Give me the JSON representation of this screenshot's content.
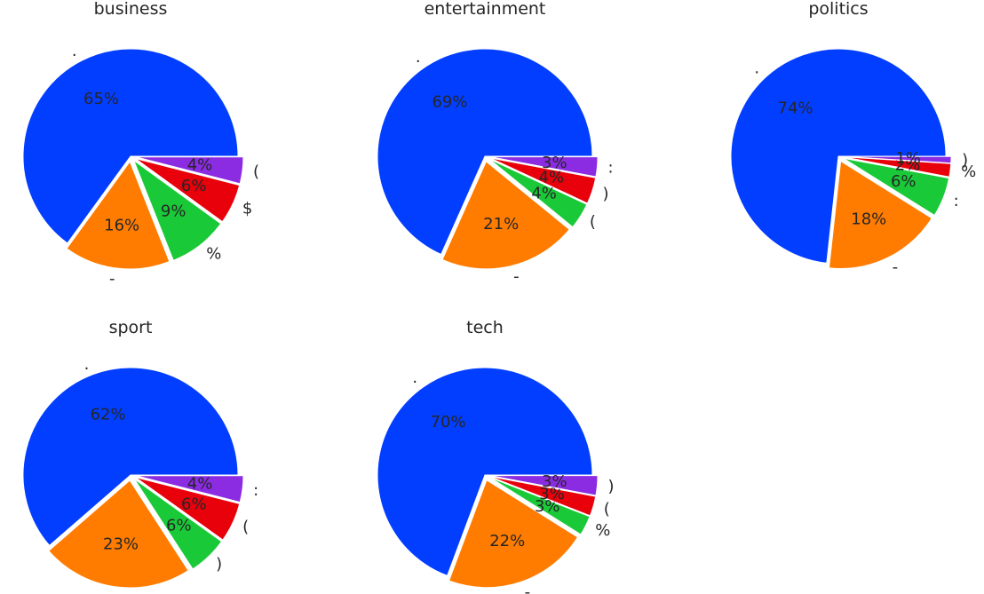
{
  "chart_data": [
    {
      "type": "pie",
      "title": "business",
      "categories": [
        ".",
        "-",
        "%",
        "$",
        "("
      ],
      "percent_labels": [
        "65%",
        "16%",
        "9%",
        "6%",
        "4%"
      ],
      "values": [
        65,
        16,
        9,
        6,
        4
      ],
      "colors": [
        "#023eff",
        "#ff7c00",
        "#1ac938",
        "#e8000b",
        "#8b2be2"
      ],
      "explode": [
        0,
        0.05,
        0.05,
        0.05,
        0.05
      ],
      "legend": "none"
    },
    {
      "type": "pie",
      "title": "entertainment",
      "categories": [
        ".",
        "-",
        "(",
        ")",
        ":"
      ],
      "percent_labels": [
        "69%",
        "21%",
        "4%",
        "4%",
        "3%"
      ],
      "values": [
        69,
        21,
        4,
        4,
        3
      ],
      "colors": [
        "#023eff",
        "#ff7c00",
        "#1ac938",
        "#e8000b",
        "#8b2be2"
      ],
      "explode": [
        0,
        0.05,
        0.05,
        0.05,
        0.05
      ],
      "legend": "none"
    },
    {
      "type": "pie",
      "title": "politics",
      "categories": [
        ".",
        "-",
        ":",
        "%",
        ")"
      ],
      "percent_labels": [
        "74%",
        "18%",
        "6%",
        "2%",
        "1%"
      ],
      "values": [
        74,
        18,
        6,
        2,
        1
      ],
      "colors": [
        "#023eff",
        "#ff7c00",
        "#1ac938",
        "#e8000b",
        "#8b2be2"
      ],
      "explode": [
        0,
        0.05,
        0.05,
        0.05,
        0.05
      ],
      "legend": "none"
    },
    {
      "type": "pie",
      "title": "sport",
      "categories": [
        ".",
        "-",
        ")",
        "(",
        ":"
      ],
      "percent_labels": [
        "62%",
        "23%",
        "6%",
        "6%",
        "4%"
      ],
      "values": [
        62,
        23,
        6,
        6,
        4
      ],
      "colors": [
        "#023eff",
        "#ff7c00",
        "#1ac938",
        "#e8000b",
        "#8b2be2"
      ],
      "explode": [
        0,
        0.05,
        0.05,
        0.05,
        0.05
      ],
      "legend": "none"
    },
    {
      "type": "pie",
      "title": "tech",
      "categories": [
        ".",
        "-",
        "%",
        "(",
        ")"
      ],
      "percent_labels": [
        "70%",
        "22%",
        "3%",
        "3%",
        "3%"
      ],
      "values": [
        70,
        22,
        3,
        3,
        3
      ],
      "colors": [
        "#023eff",
        "#ff7c00",
        "#1ac938",
        "#e8000b",
        "#8b2be2"
      ],
      "explode": [
        0,
        0.05,
        0.05,
        0.05,
        0.05
      ],
      "legend": "none"
    }
  ]
}
